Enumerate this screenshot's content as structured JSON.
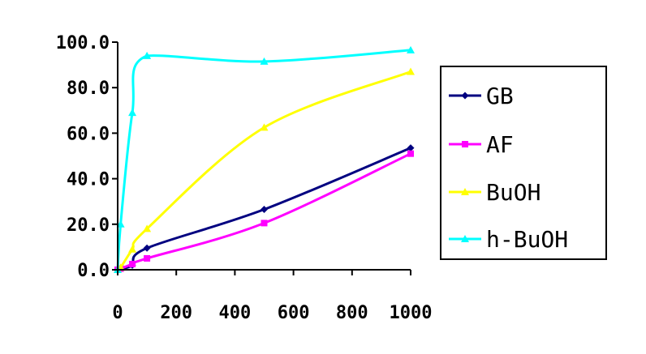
{
  "chart_data": {
    "type": "line",
    "title": "",
    "xlabel": "",
    "ylabel": "",
    "xlim": [
      0,
      1000
    ],
    "ylim": [
      0,
      100
    ],
    "x_ticks": [
      0,
      200,
      400,
      600,
      800,
      1000
    ],
    "x_tick_labels": [
      "0",
      "200",
      "400",
      "600",
      "800",
      "1000"
    ],
    "y_ticks": [
      0,
      20,
      40,
      60,
      80,
      100
    ],
    "y_tick_labels": [
      "0.0",
      "20.0",
      "40.0",
      "60.0",
      "80.0",
      "100.0"
    ],
    "grid": false,
    "legend_position": "right",
    "series": [
      {
        "name": "GB",
        "color": "#000080",
        "marker": "diamond",
        "x": [
          0,
          10,
          50,
          100,
          500,
          1000
        ],
        "y": [
          0.0,
          0.5,
          2.0,
          9.5,
          26.5,
          53.5
        ]
      },
      {
        "name": "AF",
        "color": "#ff00ff",
        "marker": "square",
        "x": [
          0,
          10,
          50,
          100,
          500,
          1000
        ],
        "y": [
          0.0,
          0.5,
          2.5,
          5.0,
          20.5,
          51.0
        ]
      },
      {
        "name": "BuOH",
        "color": "#ffff00",
        "marker": "triangle",
        "x": [
          0,
          10,
          50,
          100,
          500,
          1000
        ],
        "y": [
          0.0,
          1.0,
          9.0,
          18.0,
          62.5,
          87.0
        ]
      },
      {
        "name": "h-BuOH",
        "color": "#00ffff",
        "marker": "triangle",
        "x": [
          0,
          10,
          50,
          100,
          500,
          1000
        ],
        "y": [
          0.0,
          20.0,
          69.0,
          94.0,
          91.5,
          96.5
        ]
      }
    ]
  }
}
